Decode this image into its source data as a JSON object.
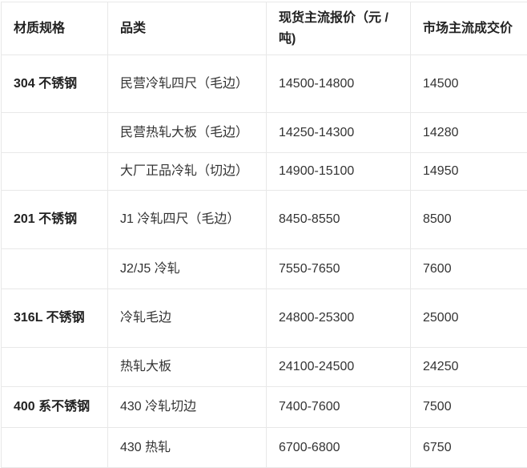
{
  "table": {
    "columns": [
      {
        "key": "spec",
        "label": "材质规格"
      },
      {
        "key": "category",
        "label": "品类"
      },
      {
        "key": "quote",
        "label": "现货主流报价（元 / 吨)"
      },
      {
        "key": "deal",
        "label": "市场主流成交价"
      }
    ],
    "rows": [
      {
        "spec": "304 不锈钢",
        "category": "民营冷轧四尺（毛边）",
        "quote": "14500-14800",
        "deal": "14500"
      },
      {
        "spec": "",
        "category": "民营热轧大板（毛边）",
        "quote": "14250-14300",
        "deal": "14280"
      },
      {
        "spec": "",
        "category": "大厂正品冷轧（切边）",
        "quote": "14900-15100",
        "deal": "14950"
      },
      {
        "spec": "201 不锈钢",
        "category": "J1 冷轧四尺（毛边）",
        "quote": "8450-8550",
        "deal": "8500"
      },
      {
        "spec": "",
        "category": "J2/J5 冷轧",
        "quote": "7550-7650",
        "deal": "7600"
      },
      {
        "spec": "316L 不锈钢",
        "category": "冷轧毛边",
        "quote": "24800-25300",
        "deal": "25000"
      },
      {
        "spec": "",
        "category": "热轧大板",
        "quote": "24100-24500",
        "deal": "24250"
      },
      {
        "spec": "400 系不锈钢",
        "category": "430 冷轧切边",
        "quote": "7400-7600",
        "deal": "7500"
      },
      {
        "spec": "",
        "category": "430 热轧",
        "quote": "6700-6800",
        "deal": "6750"
      }
    ]
  },
  "colors": {
    "border": "#e8e8e8",
    "header_text": "#222222",
    "body_text": "#333333",
    "background": "#ffffff"
  },
  "chart_data": {
    "type": "table",
    "title": "",
    "columns": [
      "材质规格",
      "品类",
      "现货主流报价（元 / 吨)",
      "市场主流成交价"
    ],
    "rows": [
      [
        "304 不锈钢",
        "民营冷轧四尺（毛边）",
        "14500-14800",
        "14500"
      ],
      [
        "",
        "民营热轧大板（毛边）",
        "14250-14300",
        "14280"
      ],
      [
        "",
        "大厂正品冷轧（切边）",
        "14900-15100",
        "14950"
      ],
      [
        "201 不锈钢",
        "J1 冷轧四尺（毛边）",
        "8450-8550",
        "8500"
      ],
      [
        "",
        "J2/J5 冷轧",
        "7550-7650",
        "7600"
      ],
      [
        "316L 不锈钢",
        "冷轧毛边",
        "24800-25300",
        "25000"
      ],
      [
        "",
        "热轧大板",
        "24100-24500",
        "24250"
      ],
      [
        "400 系不锈钢",
        "430 冷轧切边",
        "7400-7600",
        "7500"
      ],
      [
        "",
        "430 热轧",
        "6700-6800",
        "6750"
      ]
    ]
  }
}
